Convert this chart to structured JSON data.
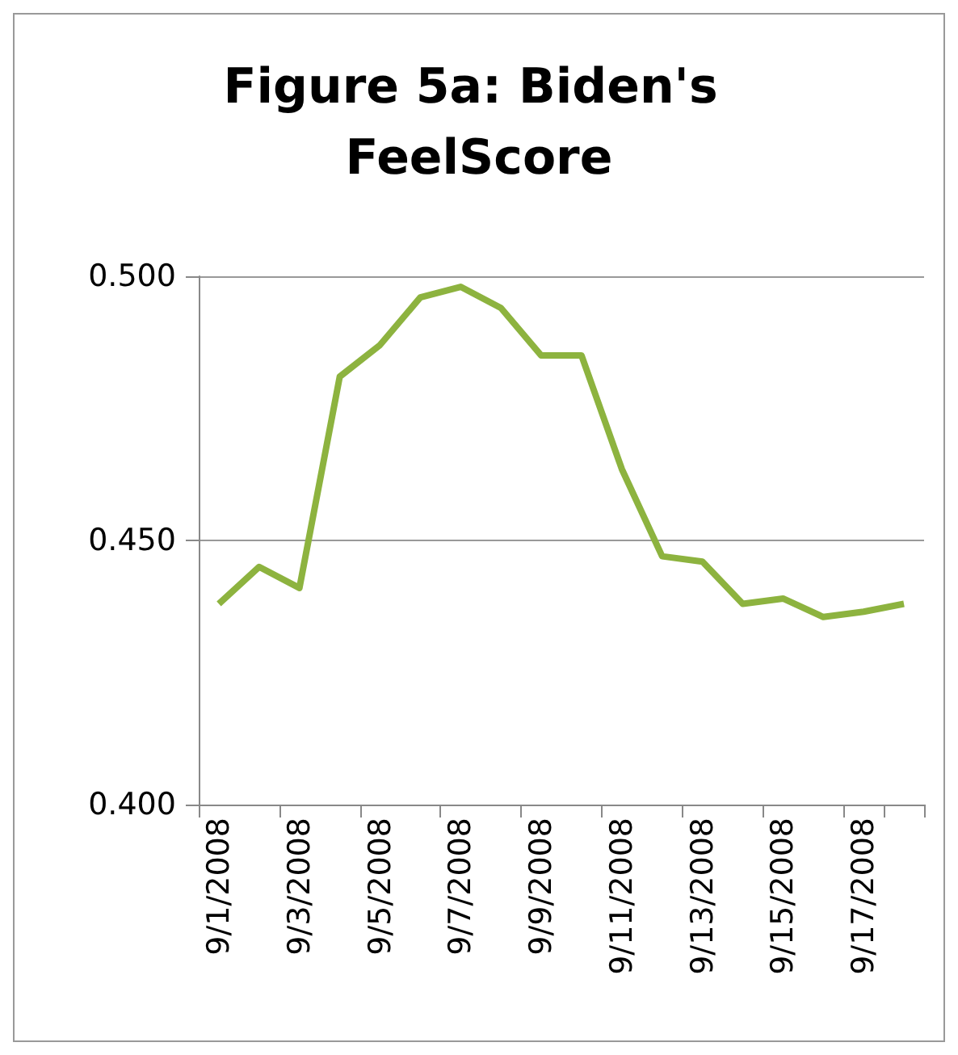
{
  "chart_data": {
    "type": "line",
    "title": "Figure 5a: Biden's FeelScore",
    "categories": [
      "9/1/2008",
      null,
      "9/3/2008",
      null,
      "9/5/2008",
      null,
      "9/7/2008",
      null,
      "9/9/2008",
      null,
      "9/11/2008",
      null,
      "9/13/2008",
      null,
      "9/15/2008",
      null,
      "9/17/2008",
      null
    ],
    "series": [
      {
        "color": "#8db33f",
        "values": [
          0.438,
          0.445,
          0.441,
          0.481,
          0.487,
          0.496,
          0.498,
          0.494,
          0.485,
          0.485,
          0.4635,
          0.447,
          0.446,
          0.438,
          0.439,
          0.4355,
          0.4365,
          0.438
        ]
      }
    ],
    "ylim": [
      0.4,
      0.5
    ],
    "yticks": [
      {
        "value": 0.4,
        "label": "0.400"
      },
      {
        "value": 0.45,
        "label": "0.450"
      },
      {
        "value": 0.5,
        "label": "0.500"
      }
    ],
    "grid": "y",
    "marker": "none",
    "line_style": "solid"
  }
}
